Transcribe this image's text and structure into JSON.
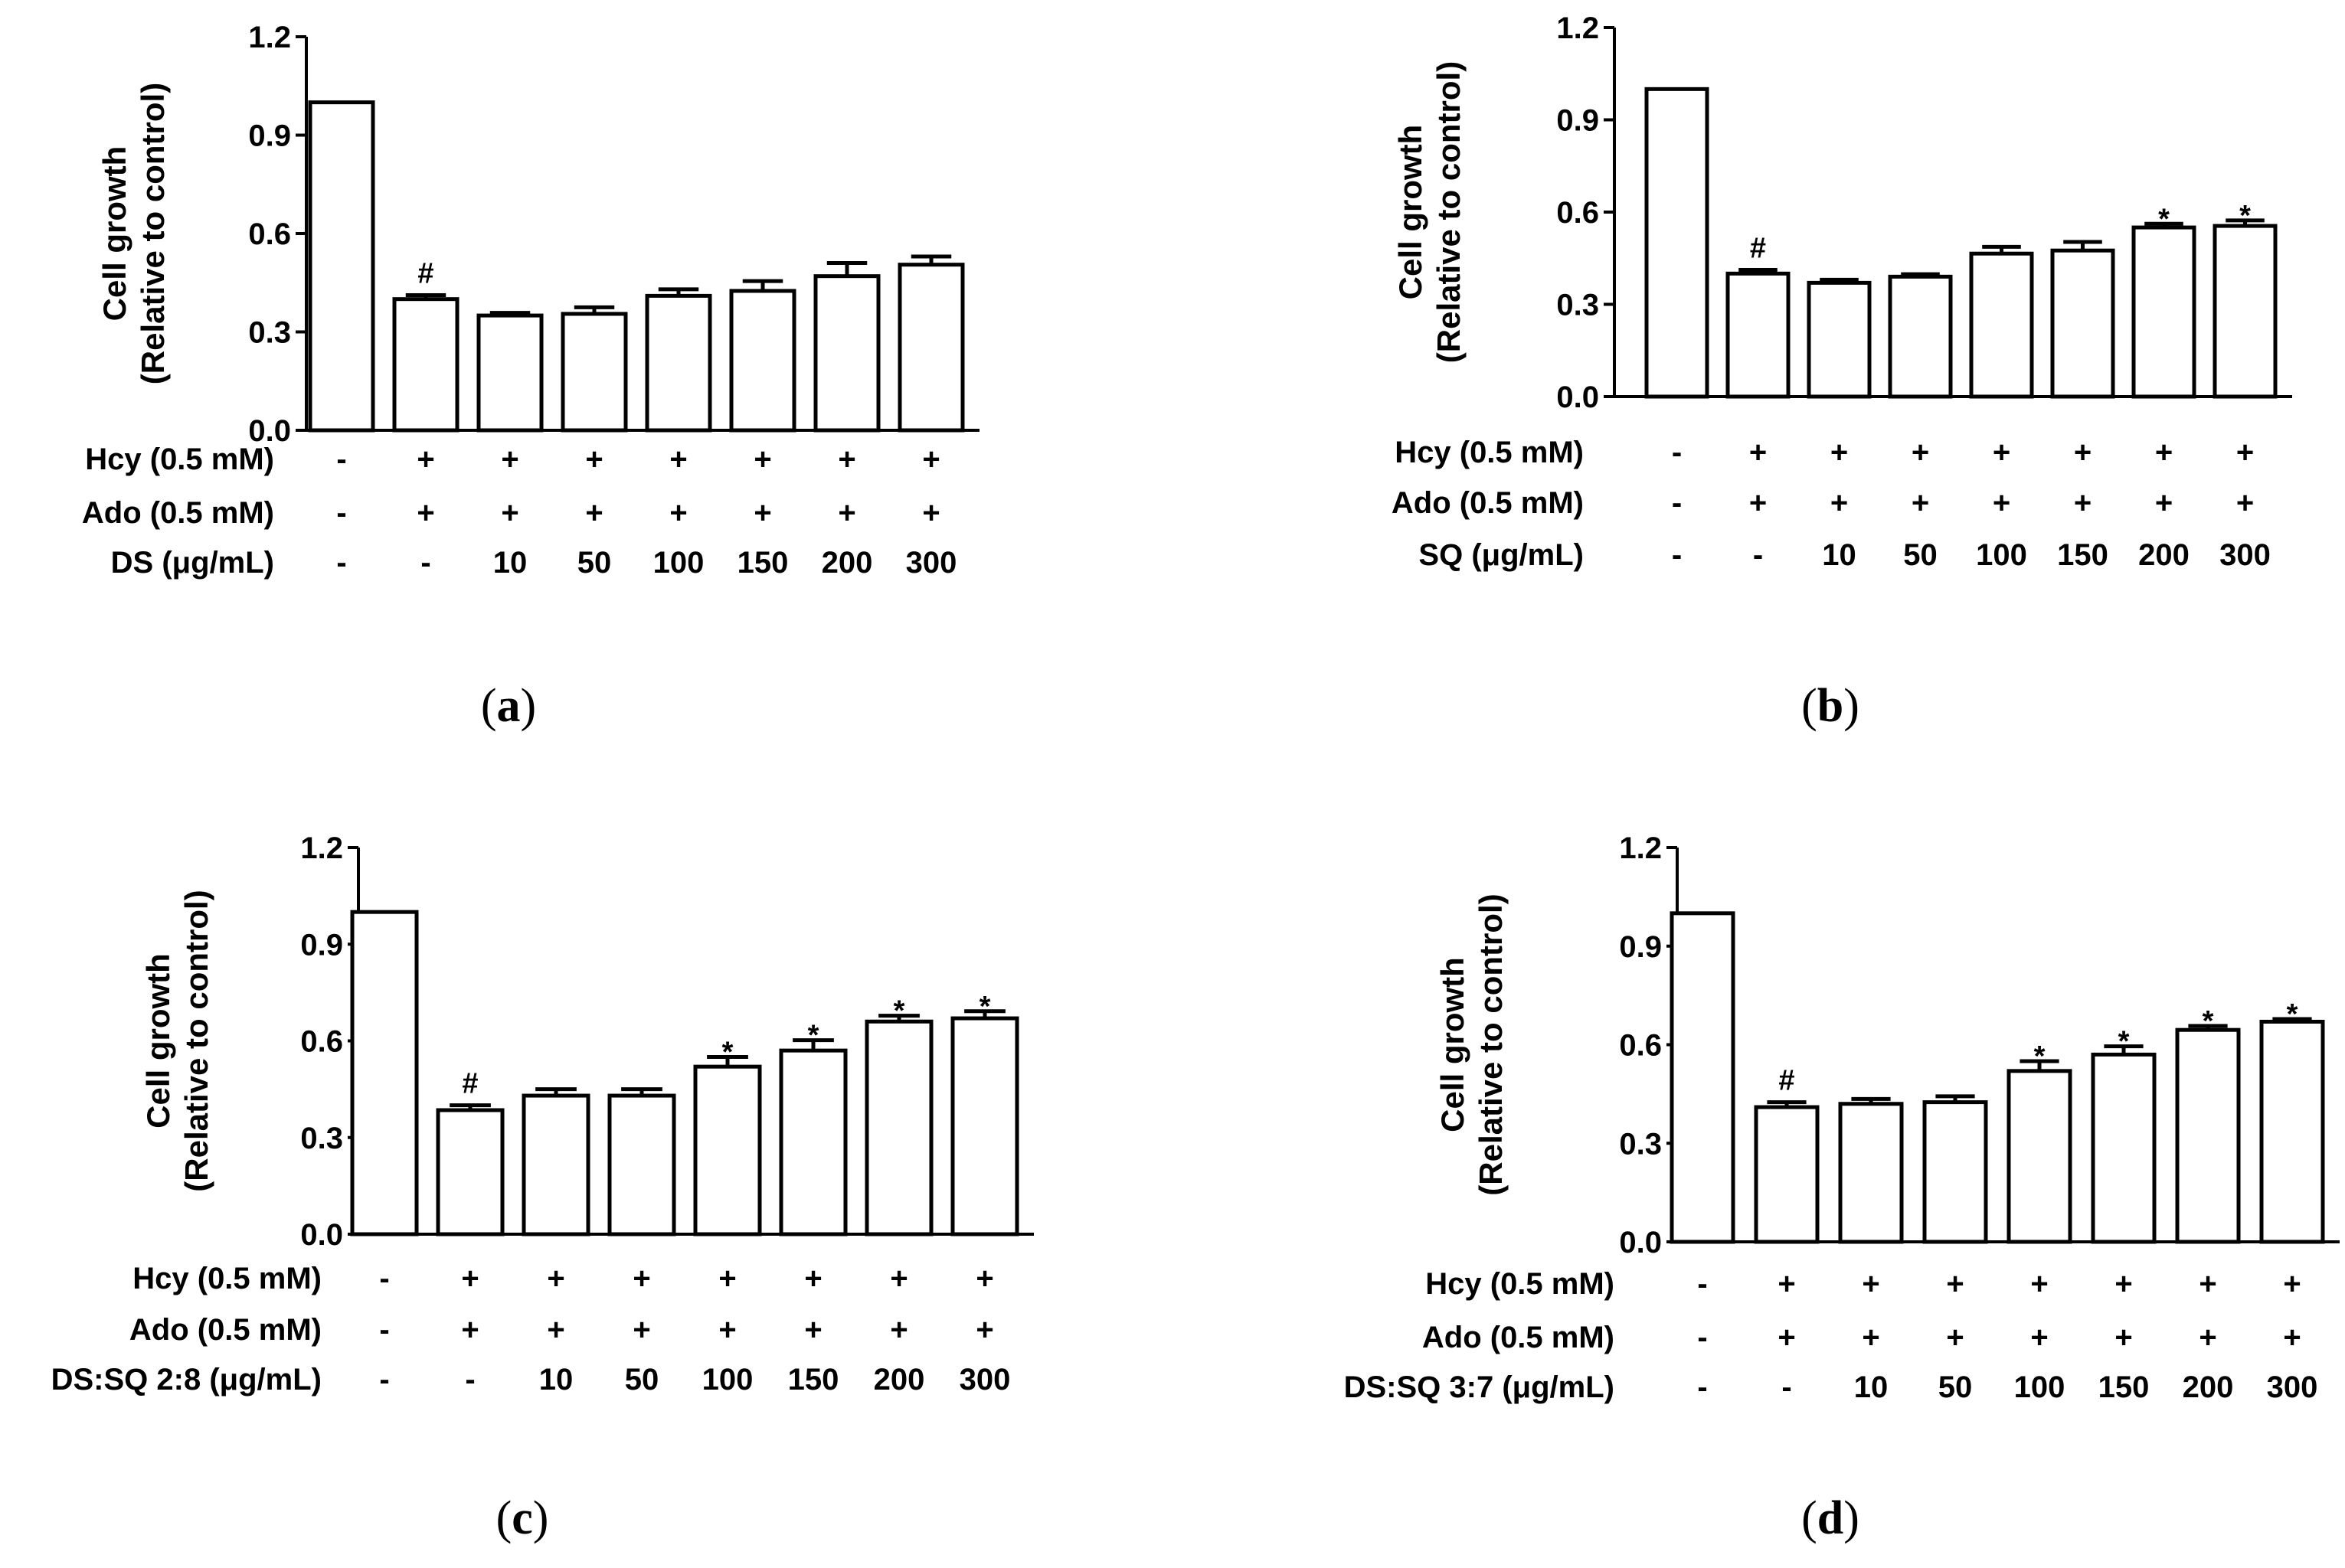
{
  "chart_data": [
    {
      "type": "bar",
      "panel": "a",
      "caption": "(a)",
      "ylabel_line1": "Cell growth",
      "ylabel_line2": "(Relative to control)",
      "ylim": [
        0,
        1.2
      ],
      "yticks": [
        "0.0",
        "0.3",
        "0.6",
        "0.9",
        "1.2"
      ],
      "values": [
        1.0,
        0.4,
        0.35,
        0.355,
        0.41,
        0.425,
        0.47,
        0.505
      ],
      "errors": [
        0,
        0.012,
        0.008,
        0.02,
        0.02,
        0.03,
        0.04,
        0.025
      ],
      "annotations": [
        "",
        "#",
        "",
        "",
        "",
        "",
        "",
        ""
      ],
      "rows": [
        {
          "label": "Hcy (0.5 mM)",
          "cells": [
            "-",
            "+",
            "+",
            "+",
            "+",
            "+",
            "+",
            "+"
          ]
        },
        {
          "label": "Ado (0.5 mM)",
          "cells": [
            "-",
            "+",
            "+",
            "+",
            "+",
            "+",
            "+",
            "+"
          ]
        },
        {
          "label": "DS (μg/mL)",
          "cells": [
            "-",
            "-",
            "10",
            "50",
            "100",
            "150",
            "200",
            "300"
          ]
        }
      ]
    },
    {
      "type": "bar",
      "panel": "b",
      "caption": "(b)",
      "ylabel_line1": "Cell growth",
      "ylabel_line2": "(Relative to control)",
      "ylim": [
        0,
        1.2
      ],
      "yticks": [
        "0.0",
        "0.3",
        "0.6",
        "0.9",
        "1.2"
      ],
      "values": [
        1.0,
        0.4,
        0.37,
        0.39,
        0.465,
        0.475,
        0.55,
        0.555
      ],
      "errors": [
        0,
        0.012,
        0.01,
        0.008,
        0.022,
        0.028,
        0.012,
        0.018
      ],
      "annotations": [
        "",
        "#",
        "",
        "",
        "",
        "",
        "*",
        "*"
      ],
      "rows": [
        {
          "label": "Hcy (0.5 mM)",
          "cells": [
            "-",
            "+",
            "+",
            "+",
            "+",
            "+",
            "+",
            "+"
          ]
        },
        {
          "label": "Ado (0.5 mM)",
          "cells": [
            "-",
            "+",
            "+",
            "+",
            "+",
            "+",
            "+",
            "+"
          ]
        },
        {
          "label": "SQ (μg/mL)",
          "cells": [
            "-",
            "-",
            "10",
            "50",
            "100",
            "150",
            "200",
            "300"
          ]
        }
      ]
    },
    {
      "type": "bar",
      "panel": "c",
      "caption": "(c)",
      "ylabel_line1": "Cell growth",
      "ylabel_line2": "(Relative to control)",
      "ylim": [
        0,
        1.2
      ],
      "yticks": [
        "0.0",
        "0.3",
        "0.6",
        "0.9",
        "1.2"
      ],
      "values": [
        1.0,
        0.385,
        0.43,
        0.43,
        0.52,
        0.57,
        0.66,
        0.67
      ],
      "errors": [
        0,
        0.015,
        0.02,
        0.02,
        0.03,
        0.032,
        0.018,
        0.022
      ],
      "annotations": [
        "",
        "#",
        "",
        "",
        "*",
        "*",
        "*",
        "*"
      ],
      "rows": [
        {
          "label": "Hcy (0.5 mM)",
          "cells": [
            "-",
            "+",
            "+",
            "+",
            "+",
            "+",
            "+",
            "+"
          ]
        },
        {
          "label": "Ado (0.5 mM)",
          "cells": [
            "-",
            "+",
            "+",
            "+",
            "+",
            "+",
            "+",
            "+"
          ]
        },
        {
          "label": "DS:SQ 2:8 (μg/mL)",
          "cells": [
            "-",
            "-",
            "10",
            "50",
            "100",
            "150",
            "200",
            "300"
          ]
        }
      ]
    },
    {
      "type": "bar",
      "panel": "d",
      "caption": "(d)",
      "ylabel_line1": "Cell growth",
      "ylabel_line2": "(Relative to control)",
      "ylim": [
        0,
        1.2
      ],
      "yticks": [
        "0.0",
        "0.3",
        "0.6",
        "0.9",
        "1.2"
      ],
      "values": [
        1.0,
        0.41,
        0.42,
        0.425,
        0.52,
        0.57,
        0.645,
        0.67
      ],
      "errors": [
        0,
        0.015,
        0.015,
        0.018,
        0.03,
        0.025,
        0.012,
        0.008
      ],
      "annotations": [
        "",
        "#",
        "",
        "",
        "*",
        "*",
        "*",
        "*"
      ],
      "rows": [
        {
          "label": "Hcy (0.5 mM)",
          "cells": [
            "-",
            "+",
            "+",
            "+",
            "+",
            "+",
            "+",
            "+"
          ]
        },
        {
          "label": "Ado (0.5 mM)",
          "cells": [
            "-",
            "+",
            "+",
            "+",
            "+",
            "+",
            "+",
            "+"
          ]
        },
        {
          "label": "DS:SQ 3:7 (μg/mL)",
          "cells": [
            "-",
            "-",
            "10",
            "50",
            "100",
            "150",
            "200",
            "300"
          ]
        }
      ]
    }
  ]
}
